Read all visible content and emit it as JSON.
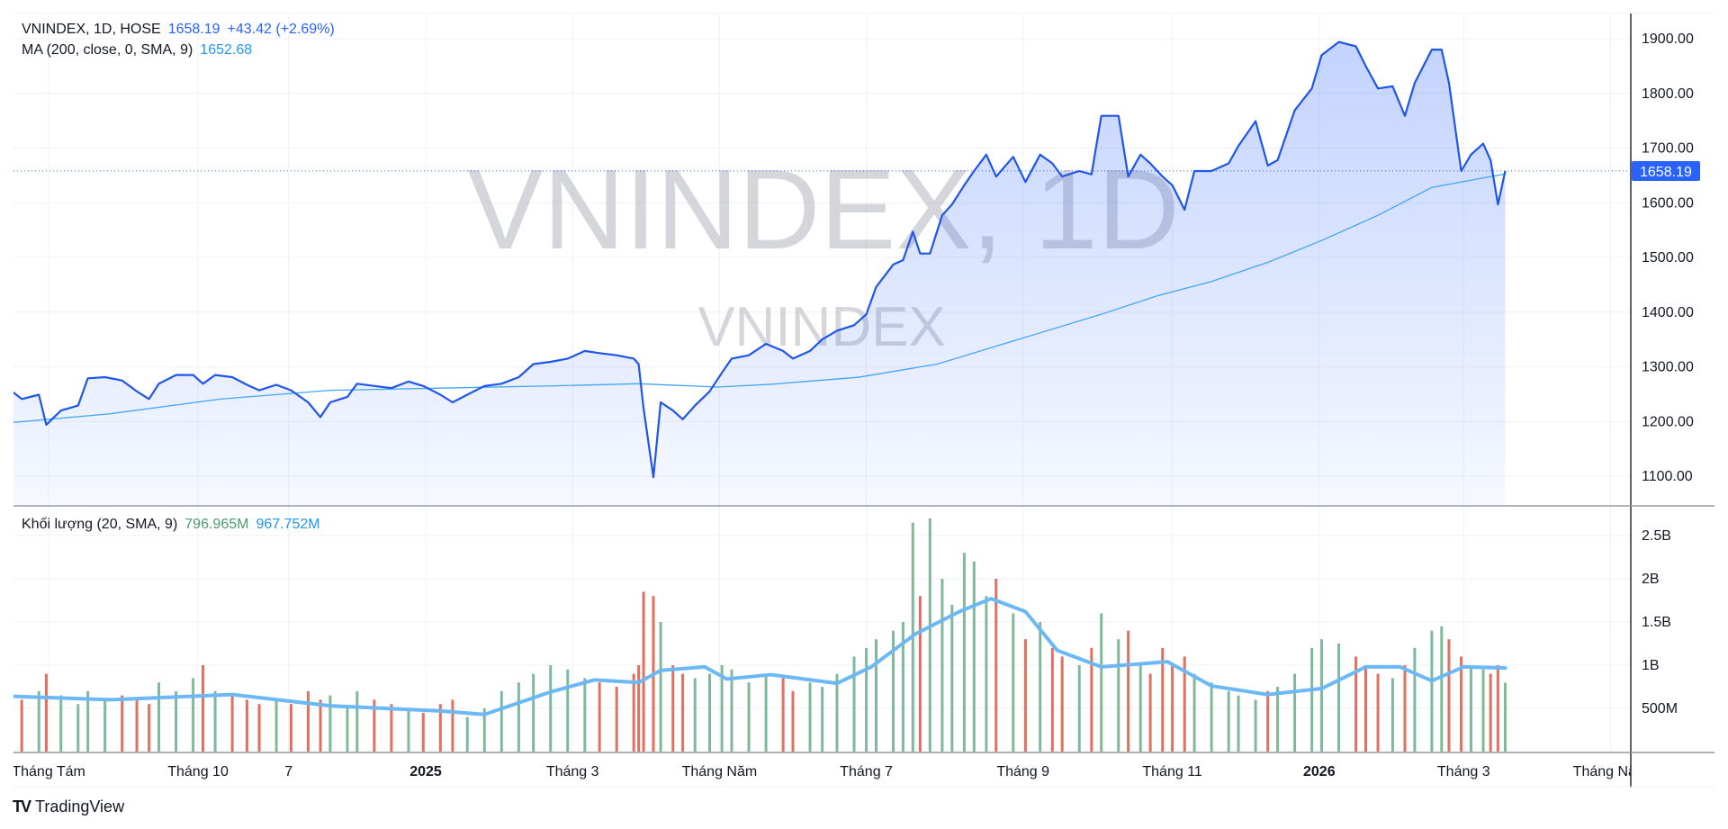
{
  "legend": {
    "symbol": "VNINDEX, 1D, HOSE",
    "price": "1658.19",
    "change": "+43.42 (+2.69%)",
    "ma_label": "MA (200, close, 0, SMA, 9)",
    "ma_value": "1652.68",
    "volume_label": "Khối lượng (20, SMA, 9)",
    "volume_value": "796.965M",
    "volume_ma_value": "967.752M"
  },
  "watermark": {
    "main": "VNINDEX, 1D",
    "sub": "VNINDEX"
  },
  "current_price_label": "1658.19",
  "branding": "TradingView",
  "colors": {
    "price_line": "#1f55e8",
    "ma_line": "#42a5f5",
    "volume_up": "#7fb99a",
    "volume_down": "#e0705f",
    "volume_ma": "#6cb8f5",
    "price_tag": "#2962ff"
  },
  "chart_data": [
    {
      "type": "area",
      "ylim": [
        1050,
        1920
      ],
      "yticks": [
        "1900.00",
        "1800.00",
        "1700.00",
        "1600.00",
        "1500.00",
        "1400.00",
        "1300.00",
        "1200.00",
        "1100.00"
      ],
      "ytick_values": [
        1900,
        1800,
        1700,
        1600,
        1500,
        1400,
        1300,
        1200,
        1100
      ],
      "xticks": [
        {
          "label": "Tháng Tám",
          "date": "2024-08-01",
          "bold": false
        },
        {
          "label": "Tháng 10",
          "date": "2024-10-01",
          "bold": false
        },
        {
          "label": "7",
          "date": "2024-11-07",
          "bold": false
        },
        {
          "label": "2025",
          "date": "2025-01-02",
          "bold": true
        },
        {
          "label": "Tháng 3",
          "date": "2025-03-03",
          "bold": false
        },
        {
          "label": "Tháng Năm",
          "date": "2025-05-02",
          "bold": false
        },
        {
          "label": "Tháng 7",
          "date": "2025-07-01",
          "bold": false
        },
        {
          "label": "Tháng 9",
          "date": "2025-09-03",
          "bold": false
        },
        {
          "label": "Tháng 11",
          "date": "2025-11-03",
          "bold": false
        },
        {
          "label": "2026",
          "date": "2026-01-02",
          "bold": true
        },
        {
          "label": "Tháng 3",
          "date": "2026-03-02",
          "bold": false
        },
        {
          "label": "Tháng Năm",
          "date": "2026-05-01",
          "bold": false
        }
      ],
      "price_series": {
        "dates": [
          "2024-07-17",
          "2024-07-21",
          "2024-07-28",
          "2024-07-31",
          "2024-08-06",
          "2024-08-13",
          "2024-08-17",
          "2024-08-24",
          "2024-08-31",
          "2024-09-06",
          "2024-09-11",
          "2024-09-15",
          "2024-09-22",
          "2024-09-29",
          "2024-10-03",
          "2024-10-08",
          "2024-10-15",
          "2024-10-21",
          "2024-10-26",
          "2024-11-02",
          "2024-11-08",
          "2024-11-15",
          "2024-11-20",
          "2024-11-24",
          "2024-12-01",
          "2024-12-05",
          "2024-12-12",
          "2024-12-19",
          "2024-12-26",
          "2025-01-01",
          "2025-01-08",
          "2025-01-13",
          "2025-01-19",
          "2025-01-26",
          "2025-02-02",
          "2025-02-09",
          "2025-02-15",
          "2025-02-22",
          "2025-03-01",
          "2025-03-08",
          "2025-03-14",
          "2025-03-21",
          "2025-03-28",
          "2025-03-30",
          "2025-04-01",
          "2025-04-05",
          "2025-04-08",
          "2025-04-13",
          "2025-04-17",
          "2025-04-22",
          "2025-04-28",
          "2025-05-03",
          "2025-05-07",
          "2025-05-14",
          "2025-05-21",
          "2025-05-28",
          "2025-06-01",
          "2025-06-08",
          "2025-06-13",
          "2025-06-19",
          "2025-06-26",
          "2025-07-01",
          "2025-07-05",
          "2025-07-12",
          "2025-07-16",
          "2025-07-20",
          "2025-07-23",
          "2025-07-27",
          "2025-08-01",
          "2025-08-05",
          "2025-08-10",
          "2025-08-14",
          "2025-08-19",
          "2025-08-23",
          "2025-08-30",
          "2025-09-04",
          "2025-09-10",
          "2025-09-15",
          "2025-09-19",
          "2025-09-26",
          "2025-10-01",
          "2025-10-05",
          "2025-10-12",
          "2025-10-16",
          "2025-10-21",
          "2025-10-25",
          "2025-10-30",
          "2025-11-03",
          "2025-11-08",
          "2025-11-12",
          "2025-11-19",
          "2025-11-26",
          "2025-11-30",
          "2025-12-07",
          "2025-12-12",
          "2025-12-16",
          "2025-12-23",
          "2025-12-30",
          "2026-01-03",
          "2026-01-10",
          "2026-01-17",
          "2026-01-21",
          "2026-01-26",
          "2026-02-01",
          "2026-02-06",
          "2026-02-10",
          "2026-02-17",
          "2026-02-21",
          "2026-02-24",
          "2026-03-01",
          "2026-03-05",
          "2026-03-10",
          "2026-03-13",
          "2026-03-16",
          "2026-03-19"
        ],
        "close": [
          1255,
          1241,
          1249,
          1194,
          1220,
          1229,
          1279,
          1281,
          1275,
          1255,
          1241,
          1269,
          1285,
          1285,
          1269,
          1285,
          1281,
          1267,
          1257,
          1267,
          1257,
          1235,
          1208,
          1235,
          1245,
          1269,
          1265,
          1261,
          1273,
          1265,
          1249,
          1235,
          1249,
          1265,
          1269,
          1281,
          1305,
          1309,
          1315,
          1329,
          1325,
          1321,
          1315,
          1305,
          1224,
          1098,
          1235,
          1220,
          1204,
          1229,
          1255,
          1289,
          1315,
          1321,
          1342,
          1329,
          1315,
          1329,
          1350,
          1366,
          1376,
          1396,
          1446,
          1487,
          1495,
          1547,
          1507,
          1507,
          1577,
          1597,
          1632,
          1658,
          1688,
          1648,
          1684,
          1638,
          1688,
          1672,
          1648,
          1658,
          1652,
          1759,
          1759,
          1648,
          1688,
          1672,
          1648,
          1632,
          1587,
          1658,
          1658,
          1672,
          1704,
          1749,
          1668,
          1678,
          1769,
          1809,
          1870,
          1894,
          1886,
          1850,
          1809,
          1813,
          1759,
          1819,
          1880,
          1880,
          1819,
          1658,
          1688,
          1708,
          1678,
          1597,
          1658.19
        ]
      },
      "ma_series": {
        "dates": [
          "2024-07-17",
          "2024-08-26",
          "2024-10-10",
          "2024-11-24",
          "2025-01-08",
          "2025-02-22",
          "2025-03-30",
          "2025-05-01",
          "2025-05-23",
          "2025-06-28",
          "2025-07-30",
          "2025-08-21",
          "2025-10-05",
          "2025-10-28",
          "2025-11-19",
          "2025-12-12",
          "2026-01-03",
          "2026-01-26",
          "2026-02-17",
          "2026-03-19"
        ],
        "values": [
          1198,
          1214,
          1241,
          1257,
          1261,
          1265,
          1269,
          1263,
          1268,
          1281,
          1305,
          1335,
          1396,
          1430,
          1456,
          1491,
          1531,
          1577,
          1628,
          1652.68
        ]
      }
    },
    {
      "type": "bar",
      "ylim": [
        0,
        2.75
      ],
      "yticks": [
        "2.5B",
        "2B",
        "1.5B",
        "1B",
        "500M"
      ],
      "ytick_values": [
        2.5,
        2,
        1.5,
        1,
        0.5
      ],
      "unit": "B",
      "volume": [
        0.75,
        0.6,
        0.7,
        0.9,
        0.65,
        0.55,
        0.7,
        0.6,
        0.65,
        0.6,
        0.55,
        0.8,
        0.7,
        0.85,
        1.0,
        0.7,
        0.65,
        0.6,
        0.55,
        0.6,
        0.55,
        0.7,
        0.6,
        0.65,
        0.5,
        0.7,
        0.6,
        0.55,
        0.5,
        0.45,
        0.55,
        0.6,
        0.4,
        0.5,
        0.7,
        0.8,
        0.9,
        1.0,
        0.95,
        0.85,
        0.8,
        0.75,
        0.9,
        1.0,
        1.85,
        1.8,
        1.5,
        1.0,
        0.9,
        0.85,
        0.9,
        1.0,
        0.95,
        0.8,
        0.9,
        0.85,
        0.7,
        0.8,
        0.75,
        0.9,
        1.1,
        1.2,
        1.3,
        1.4,
        1.5,
        2.65,
        1.8,
        2.7,
        2.0,
        1.7,
        2.3,
        2.2,
        1.8,
        2.0,
        1.6,
        1.3,
        1.5,
        1.2,
        1.1,
        1.0,
        1.2,
        1.6,
        1.3,
        1.4,
        1.0,
        0.9,
        1.2,
        1.0,
        1.1,
        0.9,
        0.8,
        0.7,
        0.65,
        0.6,
        0.7,
        0.75,
        0.9,
        1.2,
        1.3,
        1.25,
        1.1,
        1.0,
        0.9,
        0.85,
        1.0,
        1.2,
        1.4,
        1.45,
        1.3,
        1.1,
        1.0,
        0.95,
        0.9,
        1.0,
        0.797
      ],
      "volume_ma": {
        "dates": [
          "2024-07-17",
          "2024-08-26",
          "2024-10-15",
          "2024-11-24",
          "2025-01-08",
          "2025-01-26",
          "2025-02-22",
          "2025-03-12",
          "2025-03-30",
          "2025-04-08",
          "2025-04-26",
          "2025-05-05",
          "2025-05-23",
          "2025-06-19",
          "2025-07-03",
          "2025-07-21",
          "2025-08-08",
          "2025-08-21",
          "2025-09-04",
          "2025-09-17",
          "2025-10-05",
          "2025-11-01",
          "2025-11-19",
          "2025-12-12",
          "2026-01-03",
          "2026-01-21",
          "2026-02-04",
          "2026-02-17",
          "2026-03-02",
          "2026-03-19"
        ],
        "values": [
          0.64,
          0.6,
          0.66,
          0.53,
          0.47,
          0.43,
          0.69,
          0.83,
          0.8,
          0.94,
          0.98,
          0.84,
          0.89,
          0.79,
          0.98,
          1.36,
          1.62,
          1.77,
          1.62,
          1.17,
          0.98,
          1.04,
          0.76,
          0.66,
          0.73,
          0.98,
          0.98,
          0.82,
          0.98,
          0.967752
        ]
      }
    }
  ]
}
